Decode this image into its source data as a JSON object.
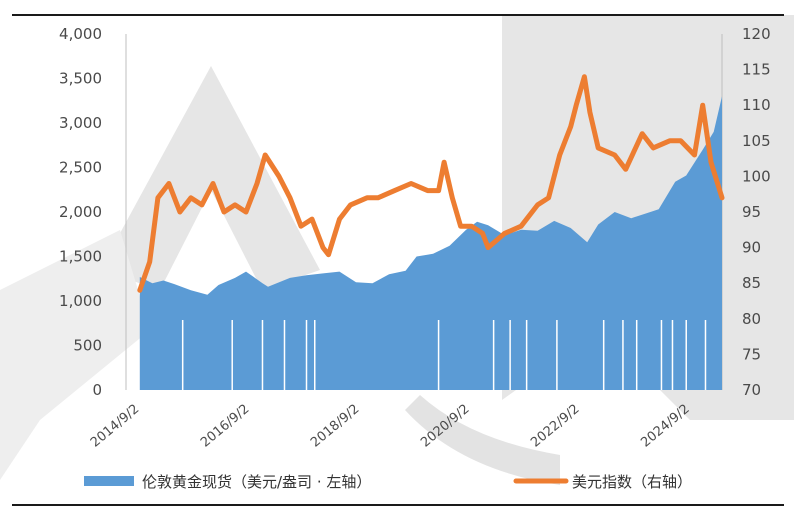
{
  "chart_data": {
    "type": "area+line",
    "title": "",
    "x_ticks": [
      "2014/9/2",
      "2016/9/2",
      "2018/9/2",
      "2020/9/2",
      "2022/9/2",
      "2024/9/2"
    ],
    "x_range": [
      2014.42,
      2025.25
    ],
    "y_left": {
      "ticks": [
        "0",
        "500",
        "1,000",
        "1,500",
        "2,000",
        "2,500",
        "3,000",
        "3,500",
        "4,000"
      ],
      "range": [
        0,
        4000
      ],
      "label": ""
    },
    "y_right": {
      "ticks": [
        "70",
        "75",
        "80",
        "85",
        "90",
        "95",
        "100",
        "105",
        "110",
        "115",
        "120"
      ],
      "range": [
        70,
        120
      ],
      "label": ""
    },
    "grid": false,
    "legend_position": "bottom",
    "series": [
      {
        "name": "伦敦黄金现货（美元/盎司 · 左轴）",
        "type": "area",
        "axis": "left",
        "color": "#5B9BD5",
        "x": [
          2014.67,
          2014.9,
          2015.1,
          2015.3,
          2015.6,
          2015.9,
          2016.1,
          2016.4,
          2016.6,
          2016.9,
          2017.0,
          2017.4,
          2017.7,
          2018.0,
          2018.3,
          2018.6,
          2018.9,
          2019.2,
          2019.5,
          2019.7,
          2020.0,
          2020.3,
          2020.6,
          2020.8,
          2021.0,
          2021.3,
          2021.6,
          2021.9,
          2022.2,
          2022.5,
          2022.8,
          2023.0,
          2023.3,
          2023.6,
          2023.9,
          2024.1,
          2024.4,
          2024.6,
          2024.9,
          2025.1,
          2025.25
        ],
        "values": [
          1270,
          1200,
          1230,
          1190,
          1120,
          1070,
          1180,
          1260,
          1330,
          1200,
          1160,
          1260,
          1290,
          1310,
          1330,
          1210,
          1200,
          1300,
          1340,
          1500,
          1530,
          1620,
          1800,
          1890,
          1850,
          1740,
          1800,
          1790,
          1900,
          1820,
          1660,
          1860,
          2000,
          1930,
          1990,
          2030,
          2340,
          2410,
          2700,
          2900,
          3300
        ]
      },
      {
        "name": "美元指数（右轴）",
        "type": "line",
        "axis": "right",
        "color": "#ED7D31",
        "x": [
          2014.67,
          2014.85,
          2015.0,
          2015.2,
          2015.4,
          2015.6,
          2015.8,
          2016.0,
          2016.2,
          2016.4,
          2016.6,
          2016.8,
          2016.95,
          2017.2,
          2017.4,
          2017.6,
          2017.8,
          2018.0,
          2018.1,
          2018.3,
          2018.5,
          2018.8,
          2019.0,
          2019.3,
          2019.6,
          2019.9,
          2020.1,
          2020.2,
          2020.35,
          2020.5,
          2020.7,
          2020.9,
          2021.0,
          2021.3,
          2021.6,
          2021.9,
          2022.1,
          2022.3,
          2022.5,
          2022.6,
          2022.75,
          2022.85,
          2023.0,
          2023.3,
          2023.5,
          2023.8,
          2024.0,
          2024.3,
          2024.5,
          2024.75,
          2024.9,
          2025.05,
          2025.25
        ],
        "values": [
          84,
          88,
          97,
          99,
          95,
          97,
          96,
          99,
          95,
          96,
          95,
          99,
          103,
          100,
          97,
          93,
          94,
          90,
          89,
          94,
          96,
          97,
          97,
          98,
          99,
          98,
          98,
          102,
          97,
          93,
          93,
          92,
          90,
          92,
          93,
          96,
          97,
          103,
          107,
          110,
          114,
          109,
          104,
          103,
          101,
          106,
          104,
          105,
          105,
          103,
          110,
          102,
          97
        ]
      }
    ]
  }
}
